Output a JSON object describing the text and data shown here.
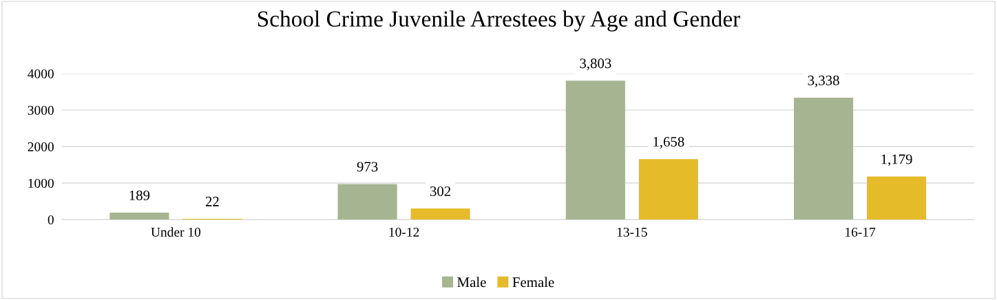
{
  "chart_data": {
    "type": "bar",
    "title": "School Crime Juvenile Arrestees by Age and Gender",
    "categories": [
      "Under 10",
      "10-12",
      "13-15",
      "16-17"
    ],
    "series": [
      {
        "name": "Male",
        "color": "#a5b592",
        "values": [
          189,
          973,
          3803,
          3338
        ],
        "value_labels": [
          "189",
          "973",
          "3,803",
          "3,338"
        ]
      },
      {
        "name": "Female",
        "color": "#e6bb2a",
        "values": [
          22,
          302,
          1658,
          1179
        ],
        "value_labels": [
          "22",
          "302",
          "1,658",
          "1,179"
        ]
      }
    ],
    "ylim": [
      0,
      4000
    ],
    "yticks": [
      0,
      1000,
      2000,
      3000,
      4000
    ],
    "grid": "y",
    "legend": "bottom"
  }
}
